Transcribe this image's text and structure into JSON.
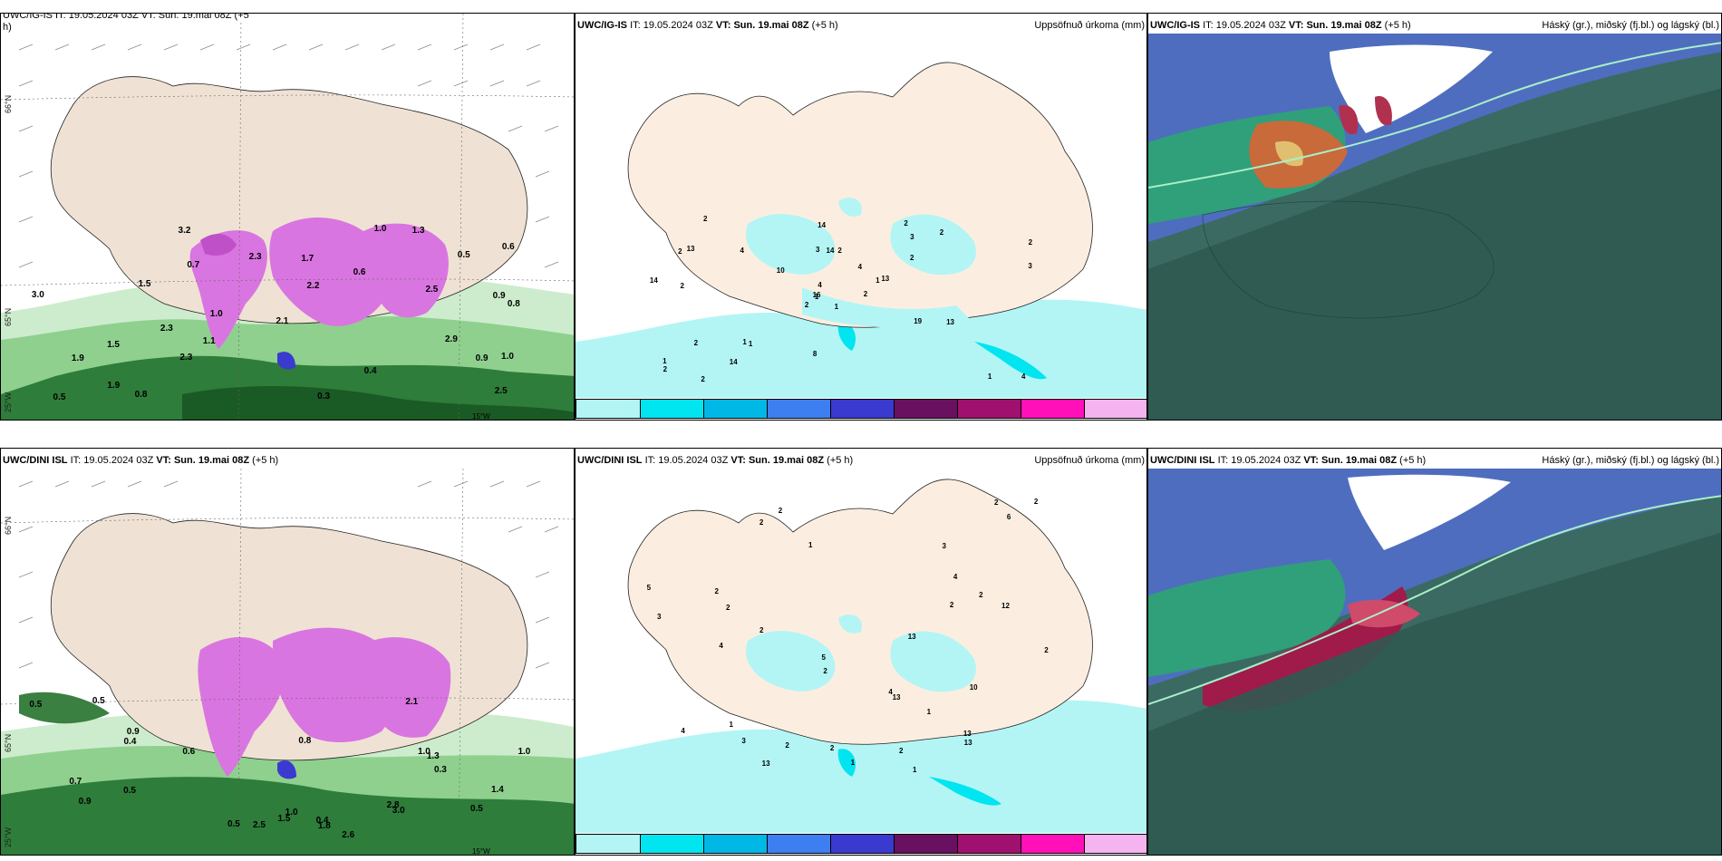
{
  "rows": [
    {
      "model": "UWC/IG-IS",
      "precip_model": "UWC/IG-IS",
      "cloud_model": "UWC/IG-IS",
      "left_header_model": "UWC/IG-IS",
      "it_label": "IT:",
      "it": "19.05.2024 03Z",
      "vt_label": "VT:",
      "vt": "Sun. 19.mai 08Z",
      "lead": "(+5 h)",
      "left_header_partial": "UWC/IG-IS IT: 19.05.2024 03Z VT: Sun. 19.mai 08Z (+5",
      "left_header_second_line": "h)",
      "precip_values": [
        "1",
        "2",
        "1",
        "1",
        "1",
        "1",
        "2",
        "2",
        "3",
        "2",
        "2",
        "4",
        "2",
        "2",
        "2",
        "2",
        "2",
        "3",
        "4",
        "2",
        "10",
        "2",
        "14",
        "14",
        "13",
        "13",
        "13",
        "14",
        "14",
        "19",
        "3",
        "16",
        "8",
        "4",
        "4",
        "2",
        "1",
        "1"
      ],
      "wind_values": [
        "0.7",
        "0.9",
        "0.6",
        "0.8",
        "1.0",
        "1.0",
        "1.1",
        "1.0",
        "0.9",
        "0.5",
        "1.5",
        "2.9",
        "2.5",
        "2.3",
        "1.9",
        "2.1",
        "2.3",
        "3.0",
        "3.2",
        "2.3",
        "2.5",
        "1.7",
        "1.9",
        "1.5",
        "2.2",
        "1.3",
        "0.5",
        "0.4",
        "0.3",
        "0.6",
        "0.8"
      ]
    },
    {
      "model": "UWC/DINI ISL",
      "precip_model": "UWC/DINI ISL",
      "cloud_model": "UWC/DINI ISL",
      "left_header_model": "UWC/DINI ISL",
      "it_label": "IT:",
      "it": "19.05.2024 03Z",
      "vt_label": "VT:",
      "vt": "Sun. 19.mai 08Z",
      "lead": "(+5 h)",
      "precip_values": [
        "1",
        "2",
        "1",
        "2",
        "2",
        "2",
        "2",
        "2",
        "2",
        "3",
        "4",
        "5",
        "5",
        "4",
        "2",
        "2",
        "3",
        "6",
        "10",
        "12",
        "13",
        "13",
        "13",
        "13",
        "13",
        "4",
        "4",
        "2",
        "1",
        "1",
        "1",
        "2",
        "3",
        "2",
        "2",
        "2"
      ],
      "wind_values": [
        "0.5",
        "1.0",
        "0.8",
        "0.5",
        "1.0",
        "0.9",
        "1.5",
        "0.7",
        "1.0",
        "0.9",
        "0.5",
        "0.5",
        "2.5",
        "2.6",
        "2.1",
        "1.8",
        "2.8",
        "3.0",
        "1.4",
        "1.3",
        "0.5",
        "0.3",
        "0.4",
        "0.6",
        "0.4"
      ]
    }
  ],
  "precip_title": "Uppsöfnuð úrkoma (mm)",
  "cloud_title": "Háský (gr.), miðský (fj.bl.) og lágský (bl.)",
  "legend": {
    "ticks": [
      "1",
      "10",
      "25",
      "50",
      "75",
      "100",
      "150",
      "200",
      "400"
    ],
    "colors": [
      "#b3f5f5",
      "#00e5f0",
      "#00b8e6",
      "#3d7ff0",
      "#3a3ad0",
      "#6a1060",
      "#a0106e",
      "#ff10b8",
      "#f5b3f0"
    ]
  },
  "grid_labels": {
    "lat_66": "66°N",
    "lat_65": "65°N",
    "lon_25w": "25°W",
    "lon_15w": "15°W"
  },
  "colors": {
    "land": "#f5e8da",
    "precip_light": "#b3f5f5",
    "precip_mid": "#00e5f0",
    "rain_green_light": "#cceccc",
    "rain_green_dark": "#1e6a2a",
    "snow_magenta": "#d975e0",
    "cloud_dark": "#2f5a52"
  }
}
